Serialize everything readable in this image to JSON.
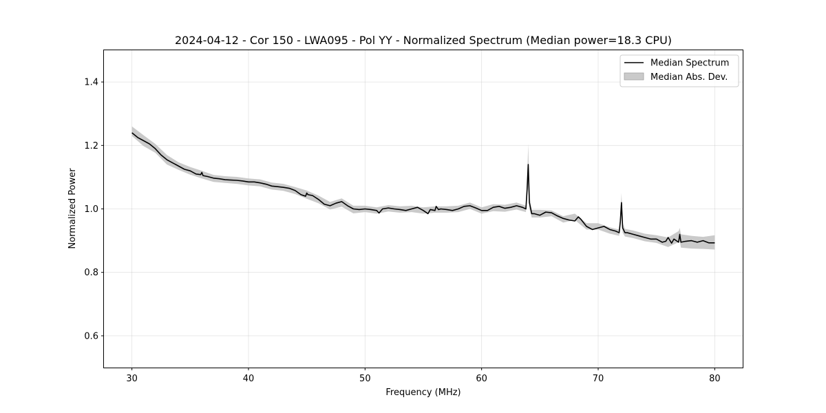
{
  "chart_data": {
    "type": "line",
    "title": "2024-04-12 - Cor 150 - LWA095 - Pol YY - Normalized Spectrum (Median power=18.3 CPU)",
    "xlabel": "Frequency (MHz)",
    "ylabel": "Normalized Power",
    "xlim": [
      27.6,
      82.4
    ],
    "ylim": [
      0.5,
      1.5
    ],
    "xticks": [
      30,
      40,
      50,
      60,
      70,
      80
    ],
    "yticks": [
      0.6,
      0.8,
      1.0,
      1.2,
      1.4
    ],
    "xtick_labels": [
      "30",
      "40",
      "50",
      "60",
      "70",
      "80"
    ],
    "ytick_labels": [
      "0.6",
      "0.8",
      "1.0",
      "1.2",
      "1.4"
    ],
    "grid": true,
    "legend_position": "top-right",
    "series": [
      {
        "name": "Median Spectrum",
        "color": "#000000",
        "x": [
          30.0,
          30.5,
          31.0,
          31.5,
          32.0,
          32.5,
          33.0,
          33.5,
          34.0,
          34.5,
          35.0,
          35.5,
          35.9,
          36.0,
          36.1,
          36.5,
          37.0,
          37.5,
          38.0,
          38.5,
          39.0,
          39.5,
          40.0,
          40.5,
          41.0,
          41.5,
          42.0,
          42.5,
          43.0,
          43.5,
          44.0,
          44.5,
          44.9,
          45.0,
          45.1,
          45.5,
          46.0,
          46.5,
          47.0,
          47.5,
          48.0,
          48.5,
          49.0,
          49.5,
          50.0,
          50.5,
          51.0,
          51.2,
          51.5,
          52.0,
          52.5,
          53.0,
          53.5,
          54.0,
          54.5,
          55.0,
          55.4,
          55.6,
          56.0,
          56.1,
          56.3,
          56.5,
          57.0,
          57.5,
          58.0,
          58.5,
          59.0,
          59.5,
          60.0,
          60.5,
          61.0,
          61.5,
          62.0,
          62.5,
          63.0,
          63.5,
          63.8,
          63.9,
          64.0,
          64.1,
          64.3,
          64.5,
          65.0,
          65.5,
          66.0,
          66.5,
          67.0,
          67.5,
          68.0,
          68.3,
          68.5,
          69.0,
          69.5,
          70.0,
          70.5,
          71.0,
          71.5,
          71.8,
          71.9,
          72.0,
          72.1,
          72.3,
          72.5,
          73.0,
          73.5,
          74.0,
          74.5,
          75.0,
          75.5,
          75.8,
          76.0,
          76.3,
          76.5,
          76.9,
          77.0,
          77.1,
          77.5,
          78.0,
          78.5,
          79.0,
          79.5,
          80.0
        ],
        "values": [
          1.24,
          1.225,
          1.215,
          1.205,
          1.19,
          1.17,
          1.155,
          1.145,
          1.135,
          1.125,
          1.12,
          1.11,
          1.108,
          1.115,
          1.105,
          1.102,
          1.097,
          1.095,
          1.092,
          1.091,
          1.09,
          1.088,
          1.085,
          1.085,
          1.082,
          1.078,
          1.072,
          1.07,
          1.068,
          1.065,
          1.058,
          1.045,
          1.04,
          1.05,
          1.045,
          1.042,
          1.03,
          1.015,
          1.01,
          1.018,
          1.023,
          1.01,
          1.0,
          0.998,
          1.0,
          0.998,
          0.995,
          0.987,
          1.0,
          1.003,
          1.0,
          0.998,
          0.995,
          1.0,
          1.005,
          0.995,
          0.985,
          0.998,
          0.995,
          1.008,
          0.998,
          1.0,
          0.998,
          0.995,
          1.0,
          1.008,
          1.01,
          1.003,
          0.995,
          0.995,
          1.005,
          1.008,
          1.002,
          1.005,
          1.01,
          1.005,
          1.0,
          1.06,
          1.14,
          1.02,
          0.985,
          0.985,
          0.98,
          0.99,
          0.988,
          0.978,
          0.97,
          0.965,
          0.962,
          0.975,
          0.968,
          0.945,
          0.935,
          0.94,
          0.945,
          0.935,
          0.93,
          0.925,
          0.96,
          1.02,
          0.94,
          0.925,
          0.925,
          0.92,
          0.915,
          0.91,
          0.905,
          0.905,
          0.895,
          0.898,
          0.91,
          0.892,
          0.905,
          0.895,
          0.92,
          0.895,
          0.898,
          0.9,
          0.895,
          0.9,
          0.893,
          0.893
        ]
      }
    ],
    "bands": [
      {
        "name": "Median Abs. Dev.",
        "color": "#bdbdbd",
        "x": [
          30.0,
          31.0,
          32.0,
          33.0,
          34.0,
          35.0,
          36.0,
          37.0,
          38.0,
          39.0,
          40.0,
          41.0,
          42.0,
          43.0,
          44.0,
          45.0,
          46.0,
          47.0,
          48.0,
          49.0,
          50.0,
          51.0,
          52.0,
          53.0,
          54.0,
          55.0,
          56.0,
          57.0,
          58.0,
          59.0,
          60.0,
          61.0,
          62.0,
          63.0,
          63.8,
          63.9,
          64.0,
          64.1,
          64.3,
          65.0,
          66.0,
          67.0,
          68.0,
          69.0,
          70.0,
          71.0,
          71.8,
          71.9,
          72.0,
          72.1,
          72.3,
          73.0,
          74.0,
          75.0,
          76.0,
          76.9,
          77.0,
          77.1,
          78.0,
          79.0,
          80.0
        ],
        "upper": [
          1.26,
          1.232,
          1.205,
          1.17,
          1.147,
          1.132,
          1.12,
          1.107,
          1.103,
          1.101,
          1.096,
          1.093,
          1.083,
          1.079,
          1.069,
          1.058,
          1.042,
          1.022,
          1.033,
          1.01,
          1.01,
          1.005,
          1.012,
          1.008,
          1.01,
          1.005,
          1.008,
          1.008,
          1.01,
          1.02,
          1.005,
          1.015,
          1.013,
          1.02,
          1.01,
          1.09,
          1.205,
          1.04,
          0.997,
          0.997,
          0.995,
          0.977,
          0.985,
          0.955,
          0.955,
          0.942,
          0.935,
          0.98,
          1.05,
          0.955,
          0.937,
          0.932,
          0.922,
          0.917,
          0.91,
          0.93,
          0.94,
          0.92,
          0.915,
          0.912,
          0.917
        ],
        "lower": [
          1.23,
          1.198,
          1.177,
          1.14,
          1.123,
          1.108,
          1.096,
          1.085,
          1.082,
          1.079,
          1.074,
          1.071,
          1.061,
          1.057,
          1.047,
          1.032,
          1.018,
          0.998,
          1.007,
          0.986,
          0.99,
          0.985,
          0.992,
          0.988,
          0.99,
          0.985,
          0.988,
          0.988,
          0.99,
          1.0,
          0.985,
          0.993,
          0.991,
          0.998,
          0.99,
          1.03,
          1.08,
          1.0,
          0.973,
          0.973,
          0.977,
          0.957,
          0.965,
          0.935,
          0.935,
          0.922,
          0.915,
          0.94,
          0.98,
          0.925,
          0.913,
          0.908,
          0.898,
          0.893,
          0.88,
          0.895,
          0.9,
          0.878,
          0.875,
          0.874,
          0.872
        ]
      }
    ]
  }
}
